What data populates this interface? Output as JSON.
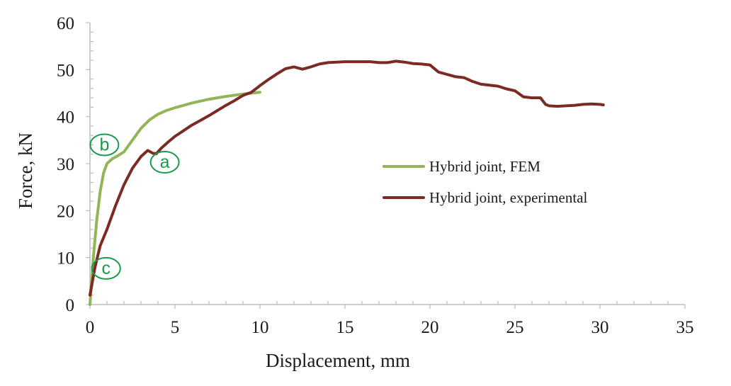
{
  "chart_data": {
    "type": "line",
    "xlabel": "Displacement, mm",
    "ylabel": "Force, kN",
    "xlim": [
      0,
      35
    ],
    "ylim": [
      0,
      60
    ],
    "x_ticks": [
      0,
      5,
      10,
      15,
      20,
      25,
      30,
      35
    ],
    "y_ticks": [
      0,
      10,
      20,
      30,
      40,
      50,
      60
    ],
    "grid": false,
    "legend_position": "right",
    "series": [
      {
        "name": "Hybrid joint, FEM",
        "color": "#92b558",
        "x": [
          0,
          0.2,
          0.4,
          0.6,
          0.8,
          1.0,
          1.3,
          1.6,
          2.0,
          2.5,
          3.0,
          3.5,
          4.0,
          4.5,
          5.0,
          6.0,
          7.0,
          8.0,
          9.0,
          10.0
        ],
        "y": [
          0,
          10,
          18,
          24,
          28,
          30,
          31,
          31.6,
          32.5,
          35,
          37.5,
          39.3,
          40.5,
          41.3,
          41.9,
          42.9,
          43.7,
          44.3,
          44.8,
          45.2
        ]
      },
      {
        "name": "Hybrid joint, experimental",
        "color": "#7b2a24",
        "x": [
          0,
          0.3,
          0.6,
          1.0,
          1.5,
          2.0,
          2.5,
          3.0,
          3.4,
          3.7,
          3.9,
          4.2,
          4.6,
          5.0,
          5.5,
          6.0,
          6.5,
          7.0,
          7.5,
          8.0,
          8.5,
          9.0,
          9.5,
          10.0,
          10.5,
          11.0,
          11.5,
          12.0,
          12.5,
          13.0,
          13.5,
          14.0,
          14.5,
          15.0,
          15.5,
          16.0,
          16.5,
          17.0,
          17.5,
          18.0,
          18.5,
          19.0,
          19.5,
          20.0,
          20.5,
          21.0,
          21.5,
          22.0,
          22.5,
          23.0,
          23.5,
          24.0,
          24.5,
          25.0,
          25.5,
          26.0,
          26.5,
          26.8,
          27.0,
          27.5,
          28.0,
          28.5,
          29.0,
          29.5,
          30.0,
          30.2
        ],
        "y": [
          2,
          8,
          12.5,
          16,
          21,
          25.5,
          29,
          31.5,
          32.8,
          32.2,
          32.1,
          33.3,
          34.6,
          35.8,
          37,
          38.2,
          39.2,
          40.2,
          41.3,
          42.4,
          43.4,
          44.5,
          45.2,
          46.6,
          47.9,
          49.1,
          50.2,
          50.6,
          50.1,
          50.6,
          51.2,
          51.5,
          51.6,
          51.7,
          51.7,
          51.7,
          51.7,
          51.5,
          51.5,
          51.8,
          51.6,
          51.3,
          51.2,
          51.0,
          49.5,
          49.0,
          48.5,
          48.3,
          47.5,
          46.9,
          46.7,
          46.5,
          45.9,
          45.5,
          44.2,
          44.0,
          44.0,
          42.6,
          42.3,
          42.2,
          42.3,
          42.4,
          42.6,
          42.7,
          42.6,
          42.5
        ]
      }
    ],
    "annotations": [
      {
        "label": "a",
        "x": 4.4,
        "y": 30.3,
        "color": "#1a9a4c"
      },
      {
        "label": "b",
        "x": 0.85,
        "y": 34.0,
        "color": "#1a9a4c"
      },
      {
        "label": "c",
        "x": 0.95,
        "y": 7.7,
        "color": "#1a9a4c"
      }
    ]
  }
}
